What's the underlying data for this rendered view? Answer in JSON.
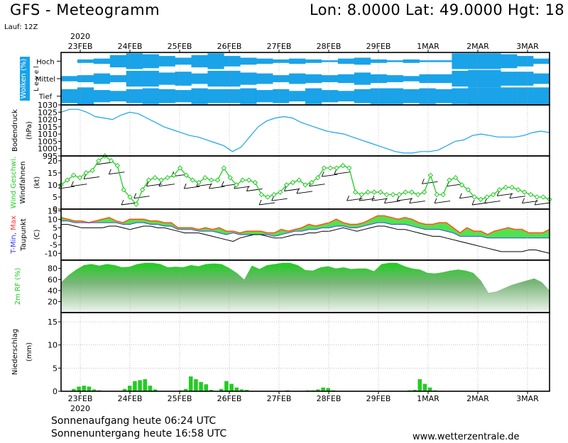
{
  "header": {
    "title": "GFS - Meteogramm",
    "coords": "Lon: 8.0000  Lat: 49.0000  Hgt: 18",
    "run": "Lauf: 12Z"
  },
  "footer": {
    "sunrise": "Sonnenaufgang heute 06:24 UTC",
    "sunset": "Sonnenuntergang heute 16:58 UTC",
    "site": "www.wetterzentrale.de"
  },
  "colors": {
    "cloud": "#1aa3e8",
    "pressure": "#1aa3e8",
    "wind": "#22cc22",
    "tmin": "#3333ff",
    "tmax": "#ff3333",
    "temp_fill_warm": "#e6a020",
    "temp_fill_green": "#33dd33",
    "rh_fill": "#22cc22",
    "precip": "#22cc22",
    "grid": "#999999"
  },
  "chart_data": {
    "type": "meteogram",
    "year": "2020",
    "x_labels": [
      "23FEB",
      "24FEB",
      "25FEB",
      "26FEB",
      "27FEB",
      "28FEB",
      "29FEB",
      "1MAR",
      "2MAR",
      "3MAR"
    ],
    "panels": [
      {
        "id": "clouds",
        "type": "heatmap",
        "ylabel": "Wolken (%)",
        "ylabel2": "L e v e l",
        "levels": [
          "Hoch",
          "Mittel",
          "Tief"
        ],
        "cover_percent": {
          "Hoch": [
            0,
            20,
            30,
            70,
            90,
            80,
            60,
            40,
            70,
            90,
            60,
            40,
            30,
            20,
            30,
            20,
            10,
            30,
            40,
            20,
            10,
            20,
            10,
            10,
            90,
            90,
            90,
            80,
            60,
            30
          ],
          "Mittel": [
            30,
            40,
            60,
            40,
            90,
            90,
            70,
            80,
            60,
            90,
            90,
            70,
            60,
            40,
            60,
            50,
            40,
            50,
            70,
            50,
            40,
            30,
            50,
            50,
            90,
            100,
            100,
            80,
            80,
            60
          ],
          "Tief": [
            80,
            100,
            70,
            60,
            80,
            90,
            80,
            70,
            90,
            80,
            80,
            90,
            70,
            80,
            60,
            90,
            70,
            60,
            80,
            90,
            90,
            80,
            90,
            80,
            90,
            100,
            100,
            100,
            100,
            100
          ]
        }
      },
      {
        "id": "pressure",
        "type": "line",
        "ylabel": "Bodendruck",
        "unit": "(hPa)",
        "yticks": [
          995,
          1000,
          1005,
          1010,
          1015,
          1020,
          1025,
          1030
        ],
        "ylim": [
          995,
          1030
        ],
        "values": [
          1025,
          1027,
          1027,
          1025,
          1022,
          1021,
          1020,
          1023,
          1025,
          1024,
          1021,
          1018,
          1015,
          1013,
          1011,
          1009,
          1008,
          1006,
          1004,
          1002,
          998,
          1001,
          1008,
          1015,
          1019,
          1021,
          1022,
          1021,
          1018,
          1016,
          1014,
          1012,
          1011,
          1010,
          1008,
          1006,
          1004,
          1002,
          1000,
          998,
          997,
          997,
          998,
          998,
          999,
          1002,
          1005,
          1006,
          1009,
          1010,
          1009,
          1008,
          1008,
          1008,
          1009,
          1011,
          1012,
          1011
        ]
      },
      {
        "id": "wind",
        "type": "line",
        "ylabel": "Wind Geschwi.",
        "ylabel2": "Windfahnen",
        "unit": "(kt)",
        "yticks": [
          0,
          5,
          10,
          15,
          20
        ],
        "ylim": [
          0,
          22
        ],
        "values": [
          10,
          12,
          14,
          13,
          15,
          16,
          20,
          22,
          20,
          18,
          8,
          5,
          2,
          8,
          12,
          13,
          12,
          13,
          14,
          17,
          14,
          12,
          11,
          13,
          12,
          12,
          17,
          13,
          10,
          12,
          12,
          11,
          6,
          5,
          6,
          7,
          10,
          11,
          12,
          10,
          11,
          13,
          17,
          17,
          17,
          18,
          17,
          7,
          6,
          7,
          7,
          7,
          6,
          6,
          6,
          7,
          7,
          6,
          7,
          14,
          6,
          6,
          12,
          13,
          10,
          8,
          5,
          4,
          5,
          6,
          8,
          9,
          9,
          8,
          7,
          6,
          5,
          5,
          4
        ]
      },
      {
        "id": "temperature",
        "type": "line",
        "ylabel": "T-Min, Max",
        "ylabel2": "Taupunkt",
        "unit": "(C)",
        "yticks": [
          -10,
          -5,
          0,
          5,
          10,
          15
        ],
        "ylim": [
          -14,
          16
        ],
        "series": [
          {
            "name": "Max",
            "values": [
              11,
              10,
              9,
              9,
              8,
              9,
              10,
              11,
              9,
              8,
              10,
              10,
              10,
              9,
              9,
              8,
              8,
              5,
              5,
              5,
              4,
              5,
              4,
              5,
              3,
              3,
              2,
              3,
              3,
              3,
              2,
              2,
              4,
              3,
              4,
              5,
              7,
              6,
              7,
              8,
              10,
              8,
              7,
              7,
              8,
              10,
              12,
              12,
              11,
              10,
              11,
              10,
              8,
              7,
              7,
              8,
              8,
              5,
              2,
              5,
              3,
              3,
              1,
              3,
              4,
              5,
              4,
              4,
              2,
              2,
              2,
              4
            ]
          },
          {
            "name": "Min",
            "values": [
              9,
              9,
              8,
              8,
              8,
              8,
              8,
              8,
              8,
              7,
              7,
              8,
              8,
              7,
              7,
              6,
              6,
              4,
              4,
              4,
              3,
              3,
              3,
              2,
              1,
              2,
              1,
              1,
              1,
              1,
              1,
              0,
              1,
              2,
              3,
              3,
              4,
              4,
              5,
              5,
              6,
              6,
              5,
              5,
              6,
              7,
              8,
              8,
              7,
              7,
              7,
              6,
              5,
              4,
              4,
              4,
              3,
              2,
              0,
              0,
              0,
              0,
              -1,
              -1,
              -1,
              -1,
              -1,
              -1,
              -1,
              -1,
              -1,
              -1
            ]
          },
          {
            "name": "Taupunkt",
            "values": [
              7,
              7,
              6,
              5,
              5,
              5,
              5,
              6,
              6,
              5,
              4,
              5,
              6,
              6,
              5,
              5,
              4,
              3,
              2,
              2,
              2,
              1,
              0,
              -1,
              -2,
              -3,
              -1,
              0,
              1,
              1,
              0,
              -1,
              -1,
              0,
              1,
              1,
              2,
              2,
              3,
              3,
              4,
              5,
              4,
              3,
              4,
              5,
              6,
              6,
              5,
              4,
              4,
              3,
              2,
              1,
              0,
              0,
              -1,
              -2,
              -3,
              -4,
              -5,
              -6,
              -7,
              -8,
              -9,
              -9,
              -9,
              -9,
              -8,
              -8,
              -9,
              -10
            ]
          }
        ]
      },
      {
        "id": "humidity",
        "type": "area",
        "ylabel": "2m RF (%)",
        "yticks": [
          20,
          40,
          60,
          80
        ],
        "ylim": [
          0,
          95
        ],
        "values": [
          55,
          68,
          78,
          86,
          88,
          85,
          88,
          86,
          82,
          83,
          88,
          90,
          90,
          88,
          82,
          83,
          82,
          86,
          84,
          88,
          89,
          88,
          81,
          72,
          60,
          85,
          79,
          86,
          88,
          90,
          90,
          86,
          77,
          76,
          82,
          84,
          80,
          82,
          79,
          80,
          80,
          75,
          88,
          90,
          90,
          84,
          80,
          78,
          72,
          71,
          73,
          76,
          78,
          76,
          72,
          58,
          36,
          38,
          44,
          50,
          54,
          58,
          62,
          55,
          40
        ]
      },
      {
        "id": "precip",
        "type": "bar",
        "ylabel": "Niederschlag",
        "unit": "(mm)",
        "yticks": [
          0,
          5,
          10,
          15
        ],
        "ylim": [
          0,
          17
        ],
        "values": [
          0,
          0,
          0.5,
          1,
          1.2,
          1,
          0.4,
          0.2,
          0,
          0,
          0,
          0,
          0.5,
          1.2,
          2.2,
          2.4,
          2.6,
          1.2,
          0.4,
          0,
          0,
          0,
          0,
          0.2,
          0.5,
          3.2,
          2.6,
          2,
          1.5,
          0.3,
          0,
          0.5,
          2.2,
          1.6,
          0.8,
          0.4,
          0.3,
          0.1,
          0,
          0,
          0,
          0,
          0,
          0,
          0.2,
          0,
          0,
          0,
          0.2,
          0.2,
          0.4,
          0.8,
          0.7,
          0.2,
          0.1,
          0,
          0,
          0,
          0,
          0,
          0,
          0,
          0,
          0,
          0,
          0,
          0,
          0,
          0.2,
          0.3,
          2.6,
          1.6,
          0.8,
          0.2,
          0.1,
          0,
          0,
          0,
          0,
          0,
          0,
          0,
          0,
          0,
          0,
          0,
          0,
          0,
          0,
          0,
          0,
          0,
          0,
          0,
          0,
          0
        ]
      }
    ]
  }
}
